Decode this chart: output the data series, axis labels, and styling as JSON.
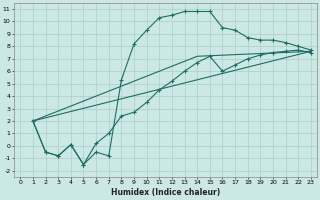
{
  "xlabel": "Humidex (Indice chaleur)",
  "xlim": [
    -0.5,
    23.5
  ],
  "ylim": [
    -2.5,
    11.5
  ],
  "xticks": [
    0,
    1,
    2,
    3,
    4,
    5,
    6,
    7,
    8,
    9,
    10,
    11,
    12,
    13,
    14,
    15,
    16,
    17,
    18,
    19,
    20,
    21,
    22,
    23
  ],
  "yticks": [
    -2,
    -1,
    0,
    1,
    2,
    3,
    4,
    5,
    6,
    7,
    8,
    9,
    10,
    11
  ],
  "bg_color": "#cce8e4",
  "grid_color": "#aacfcb",
  "line_color": "#1a6e65",
  "series1_x": [
    1,
    2,
    3,
    4,
    5,
    6,
    7,
    8,
    9,
    10,
    11,
    12,
    13,
    14,
    15,
    16,
    17,
    18,
    19,
    20,
    21,
    22,
    23
  ],
  "series1_y": [
    2.0,
    -0.5,
    -0.8,
    0.1,
    -1.5,
    -0.5,
    -0.8,
    5.3,
    8.2,
    9.3,
    10.3,
    10.5,
    10.8,
    10.8,
    10.8,
    9.5,
    9.3,
    8.7,
    8.5,
    8.5,
    8.3,
    8.0,
    7.7
  ],
  "series2_x": [
    1,
    2,
    3,
    4,
    5,
    6,
    7,
    8,
    9,
    10,
    11,
    12,
    13,
    14,
    15,
    16,
    17,
    18,
    19,
    20,
    21,
    22,
    23
  ],
  "series2_y": [
    2.0,
    -0.5,
    -0.8,
    0.1,
    -1.5,
    0.2,
    1.0,
    2.4,
    2.7,
    3.5,
    4.5,
    5.2,
    6.0,
    6.7,
    7.2,
    6.0,
    6.5,
    7.0,
    7.3,
    7.5,
    7.6,
    7.7,
    7.5
  ],
  "series3_x": [
    1,
    23
  ],
  "series3_y": [
    2.0,
    7.6
  ],
  "series4_x": [
    1,
    14,
    23
  ],
  "series4_y": [
    2.0,
    7.2,
    7.6
  ]
}
